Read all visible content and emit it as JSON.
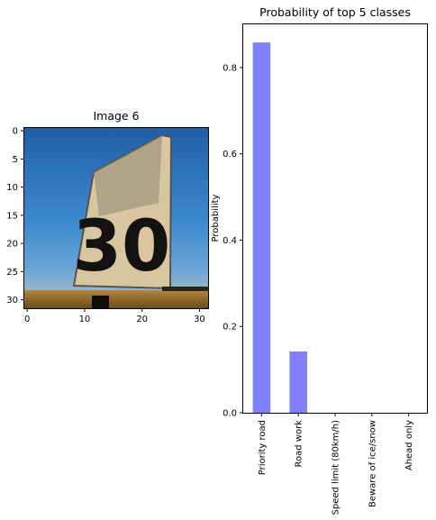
{
  "image_panel": {
    "title": "Image 6",
    "x_ticks": [
      "0",
      "10",
      "20",
      "30"
    ],
    "y_ticks": [
      "0",
      "5",
      "10",
      "15",
      "20",
      "25",
      "30"
    ],
    "x_tick_values": [
      0,
      10,
      20,
      30
    ],
    "y_tick_values": [
      0,
      5,
      10,
      15,
      20,
      25,
      30
    ],
    "xlim": [
      -0.5,
      31.5
    ],
    "ylim": [
      31.5,
      -0.5
    ]
  },
  "chart_data": {
    "type": "bar",
    "title": "Probability of top 5 classes",
    "xlabel": "",
    "ylabel": "Probability",
    "categories": [
      "Priority road",
      "Road work",
      "Speed limit (80km/h)",
      "Beware of ice/snow",
      "Ahead only"
    ],
    "values": [
      0.858,
      0.142,
      0.0,
      0.0,
      0.0
    ],
    "y_ticks": [
      "0.0",
      "0.2",
      "0.4",
      "0.6",
      "0.8"
    ],
    "y_tick_values": [
      0.0,
      0.2,
      0.4,
      0.6,
      0.8
    ],
    "ylim": [
      0,
      0.9
    ],
    "bar_color": "#8080ff",
    "grid": false,
    "legend": "none"
  }
}
